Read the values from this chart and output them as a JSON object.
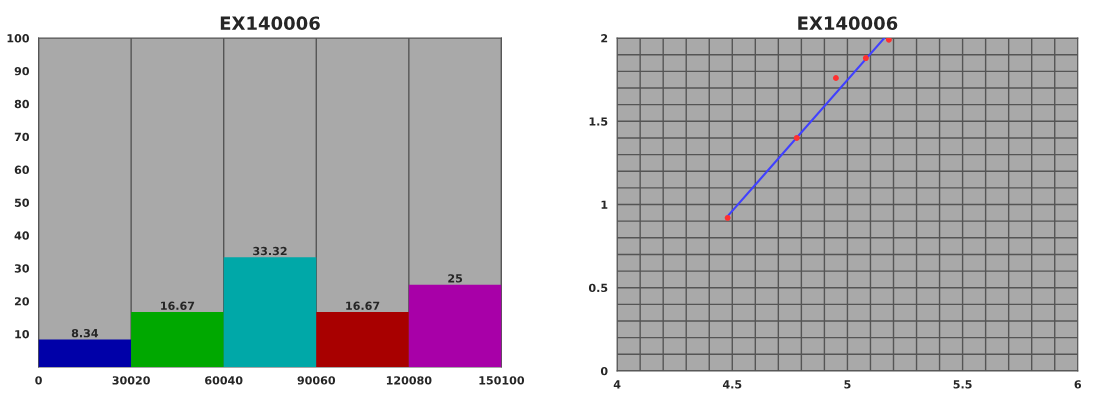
{
  "chart_data": [
    {
      "type": "histogram",
      "title": "EX140006",
      "bins": [
        0,
        30020,
        60040,
        90060,
        120080,
        150100
      ],
      "values": [
        8.34,
        16.67,
        33.32,
        16.67,
        25
      ],
      "colors": [
        "#0000a8",
        "#00a800",
        "#00a8a8",
        "#a80000",
        "#a800a8"
      ],
      "xlim": [
        0,
        150100
      ],
      "xticks": [
        0,
        30020,
        60040,
        90060,
        120080,
        150100
      ],
      "ylim": [
        0,
        100
      ],
      "yticks": [
        10,
        20,
        30,
        40,
        50,
        60,
        70,
        80,
        90,
        100
      ],
      "grid": "x",
      "data_labels": true
    },
    {
      "type": "scatter",
      "title": "EX140006",
      "xlim": [
        4,
        6
      ],
      "ylim": [
        0,
        2
      ],
      "xticks": [
        4,
        {
          "value": 4.1,
          "label": null
        },
        {
          "value": 4.2,
          "label": null
        },
        {
          "value": 4.3,
          "label": null
        },
        {
          "value": 4.4,
          "label": null
        },
        4.5,
        {
          "value": 4.6,
          "label": null
        },
        {
          "value": 4.7,
          "label": null
        },
        {
          "value": 4.8,
          "label": null
        },
        {
          "value": 4.9,
          "label": null
        },
        5,
        {
          "value": 5.1,
          "label": null
        },
        {
          "value": 5.2,
          "label": null
        },
        {
          "value": 5.3,
          "label": null
        },
        {
          "value": 5.4,
          "label": null
        },
        5.5,
        {
          "value": 5.6,
          "label": null
        },
        {
          "value": 5.7,
          "label": null
        },
        {
          "value": 5.8,
          "label": null
        },
        {
          "value": 5.9,
          "label": null
        },
        6
      ],
      "yticks": [
        0,
        {
          "value": 0.1,
          "label": null
        },
        {
          "value": 0.2,
          "label": null
        },
        {
          "value": 0.3,
          "label": null
        },
        {
          "value": 0.4,
          "label": null
        },
        0.5,
        {
          "value": 0.6,
          "label": null
        },
        {
          "value": 0.7,
          "label": null
        },
        {
          "value": 0.8,
          "label": null
        },
        {
          "value": 0.9,
          "label": null
        },
        1,
        {
          "value": 1.1,
          "label": null
        },
        {
          "value": 1.2,
          "label": null
        },
        {
          "value": 1.3,
          "label": null
        },
        {
          "value": 1.4,
          "label": null
        },
        1.5,
        {
          "value": 1.6,
          "label": null
        },
        {
          "value": 1.7,
          "label": null
        },
        {
          "value": 1.8,
          "label": null
        },
        {
          "value": 1.9,
          "label": null
        },
        2
      ],
      "grid": true,
      "series": [
        {
          "type": "scatter",
          "color": "#ff3030",
          "x": [
            4.48,
            4.78,
            4.95,
            5.08,
            5.18
          ],
          "values": [
            0.92,
            1.4,
            1.76,
            1.88,
            1.99
          ],
          "marker": "circle"
        },
        {
          "type": "line",
          "color": "#4040ff",
          "x": [
            4.48,
            5.16
          ],
          "values": [
            0.93,
            2.0
          ],
          "marker": "none"
        }
      ]
    }
  ]
}
